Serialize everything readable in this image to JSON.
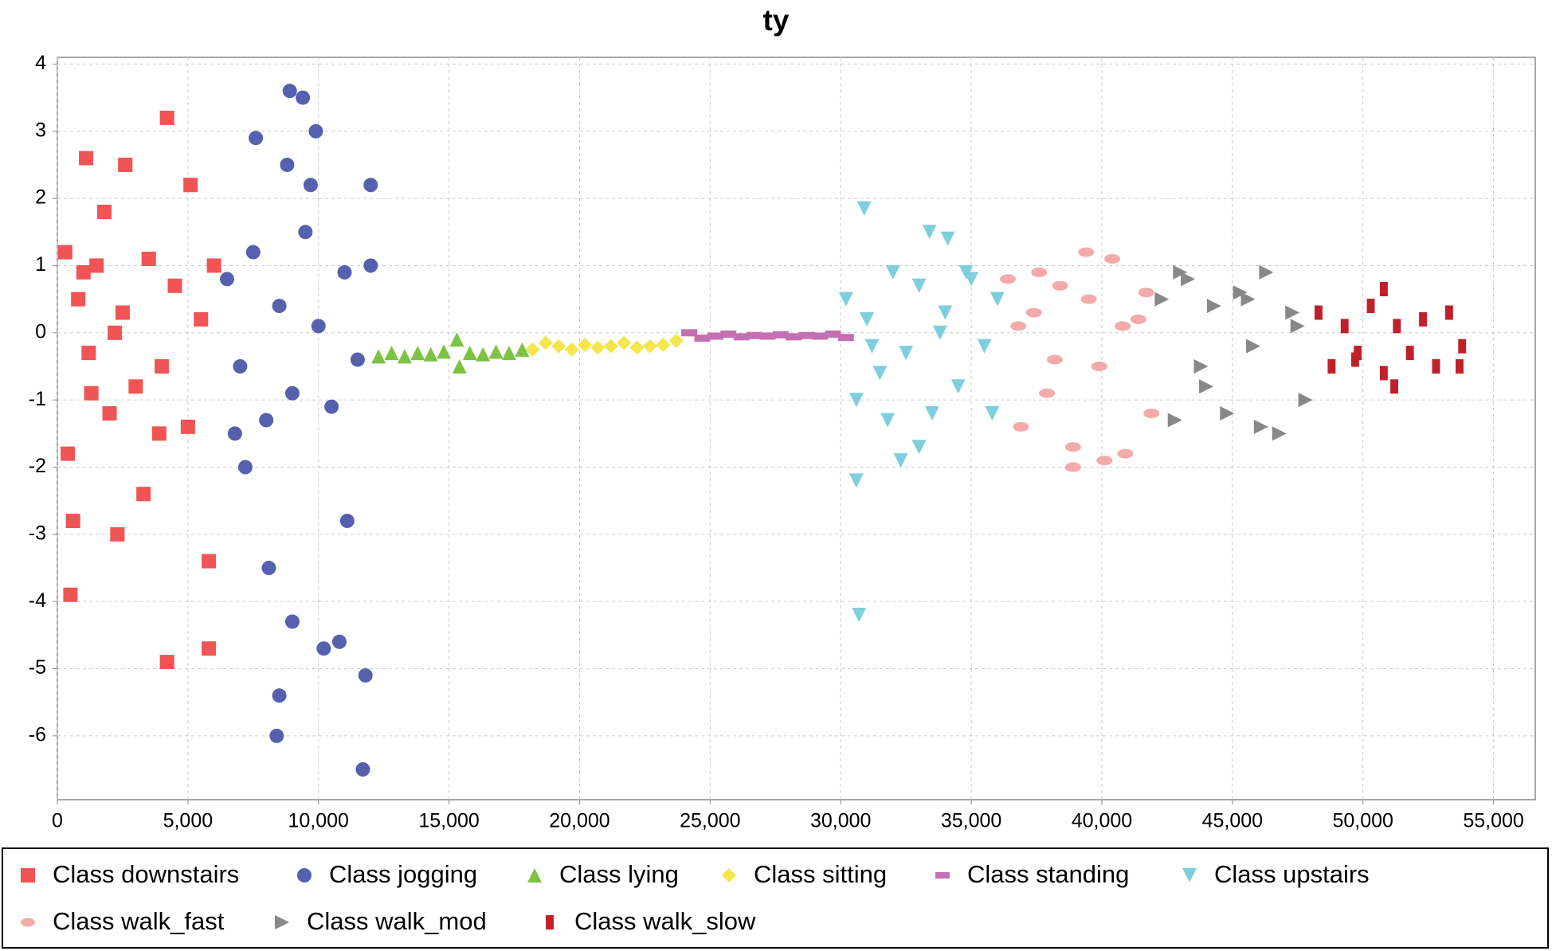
{
  "chart_data": {
    "type": "scatter",
    "title": "ty",
    "xlim": [
      0,
      56600
    ],
    "ylim": [
      -6.95,
      4.1
    ],
    "xticks": [
      0,
      {
        "value": 5000,
        "label": "5,000"
      },
      {
        "value": 10000,
        "label": "10,000"
      },
      {
        "value": 15000,
        "label": "15,000"
      },
      {
        "value": 20000,
        "label": "20,000"
      },
      {
        "value": 25000,
        "label": "25,000"
      },
      {
        "value": 30000,
        "label": "30,000"
      },
      {
        "value": 35000,
        "label": "35,000"
      },
      {
        "value": 40000,
        "label": "40,000"
      },
      {
        "value": 45000,
        "label": "45,000"
      },
      {
        "value": 50000,
        "label": "50,000"
      },
      {
        "value": 55000,
        "label": "55,000"
      }
    ],
    "yticks": [
      -6,
      -5,
      -4,
      -3,
      -2,
      -1,
      0,
      1,
      2,
      3,
      4
    ],
    "grid": true,
    "legend": "bottom",
    "series": [
      {
        "name": "Class downstairs",
        "color": "#f05455",
        "marker": "square",
        "x": [
          300,
          800,
          1200,
          1500,
          2000,
          2500,
          3000,
          3500,
          4000,
          4500,
          5000,
          5500,
          6000,
          400,
          1100,
          1800,
          2600,
          3300,
          4200,
          5100,
          5800,
          600,
          1300,
          2300,
          4200,
          500,
          5800,
          2200,
          3900,
          1000
        ],
        "values": [
          1.2,
          0.5,
          -0.3,
          1.0,
          -1.2,
          0.3,
          -0.8,
          1.1,
          -0.5,
          0.7,
          -1.4,
          0.2,
          1.0,
          -1.8,
          2.6,
          1.8,
          2.5,
          -2.4,
          3.2,
          2.2,
          -3.4,
          -2.8,
          -0.9,
          -3.0,
          -4.9,
          -3.9,
          -4.7,
          0.0,
          -1.5,
          0.9
        ]
      },
      {
        "name": "Class jogging",
        "color": "#5560ae",
        "marker": "circle",
        "x": [
          6500,
          7000,
          7500,
          8000,
          8500,
          9000,
          9500,
          10000,
          10500,
          11000,
          11500,
          12000,
          7600,
          8900,
          9400,
          9900,
          8400,
          8500,
          10200,
          11700,
          7200,
          8100,
          9000,
          10800,
          11800,
          6800,
          9700,
          11100,
          8800,
          12000
        ],
        "values": [
          0.8,
          -0.5,
          1.2,
          -1.3,
          0.4,
          -0.9,
          1.5,
          0.1,
          -1.1,
          0.9,
          -0.4,
          1.0,
          2.9,
          3.6,
          3.5,
          3.0,
          -6.0,
          -5.4,
          -4.7,
          -6.5,
          -2.0,
          -3.5,
          -4.3,
          -4.6,
          -5.1,
          -1.5,
          2.2,
          -2.8,
          2.5,
          2.2
        ]
      },
      {
        "name": "Class lying",
        "color": "#7dc242",
        "marker": "triangle-up",
        "x": [
          12300,
          12800,
          13300,
          13800,
          14300,
          14800,
          15300,
          15400,
          15800,
          16300,
          16800,
          17300,
          17800
        ],
        "values": [
          -0.35,
          -0.3,
          -0.35,
          -0.3,
          -0.32,
          -0.28,
          -0.1,
          -0.5,
          -0.3,
          -0.32,
          -0.28,
          -0.3,
          -0.25
        ]
      },
      {
        "name": "Class sitting",
        "color": "#f5e64c",
        "marker": "diamond",
        "x": [
          18200,
          18700,
          19200,
          19700,
          20200,
          20700,
          21200,
          21700,
          22200,
          22700,
          23200,
          23700
        ],
        "values": [
          -0.25,
          -0.15,
          -0.2,
          -0.25,
          -0.18,
          -0.22,
          -0.2,
          -0.15,
          -0.22,
          -0.2,
          -0.18,
          -0.12
        ]
      },
      {
        "name": "Class standing",
        "color": "#c56fb4",
        "marker": "hbar",
        "x": [
          24200,
          24700,
          25200,
          25700,
          26200,
          26700,
          27200,
          27700,
          28200,
          28700,
          29200,
          29700,
          30200
        ],
        "values": [
          0.0,
          -0.08,
          -0.05,
          -0.02,
          -0.06,
          -0.04,
          -0.05,
          -0.03,
          -0.06,
          -0.04,
          -0.05,
          -0.02,
          -0.07
        ]
      },
      {
        "name": "Class upstairs",
        "color": "#7ecfdd",
        "marker": "triangle-down",
        "x": [
          30200,
          30600,
          31000,
          31500,
          32000,
          32500,
          33000,
          33500,
          34000,
          34500,
          35000,
          35500,
          36000,
          30900,
          30700,
          30600,
          33400,
          34100,
          32300,
          35800,
          31200,
          33000,
          34800,
          31800,
          33800
        ],
        "values": [
          0.5,
          -1.0,
          0.2,
          -0.6,
          0.9,
          -0.3,
          0.7,
          -1.2,
          0.3,
          -0.8,
          0.8,
          -0.2,
          0.5,
          1.85,
          -4.2,
          -2.2,
          1.5,
          1.4,
          -1.9,
          -1.2,
          -0.2,
          -1.7,
          0.9,
          -1.3,
          0.0
        ]
      },
      {
        "name": "Class walk_fast",
        "color": "#f4aaab",
        "marker": "ellipse",
        "x": [
          36400,
          36900,
          37400,
          37900,
          38400,
          38900,
          39400,
          39900,
          40400,
          40900,
          41400,
          41900,
          38900,
          40100,
          39500,
          37600,
          40800,
          38200,
          36800,
          41700
        ],
        "values": [
          0.8,
          -1.4,
          0.3,
          -0.9,
          0.7,
          -1.7,
          1.2,
          -0.5,
          1.1,
          -1.8,
          0.2,
          -1.2,
          -2.0,
          -1.9,
          0.5,
          0.9,
          0.1,
          -0.4,
          0.1,
          0.6
        ]
      },
      {
        "name": "Class walk_mod",
        "color": "#888888",
        "marker": "triangle-right",
        "x": [
          42300,
          42800,
          43300,
          43800,
          44300,
          44800,
          45300,
          45800,
          46300,
          46800,
          47300,
          47800,
          43000,
          46100,
          44000,
          45600,
          47500
        ],
        "values": [
          0.5,
          -1.3,
          0.8,
          -0.5,
          0.4,
          -1.2,
          0.6,
          -0.2,
          0.9,
          -1.5,
          0.3,
          -1.0,
          0.9,
          -1.4,
          -0.8,
          0.5,
          0.1
        ]
      },
      {
        "name": "Class walk_slow",
        "color": "#c0202a",
        "marker": "vbar",
        "x": [
          48300,
          48800,
          49300,
          49800,
          50300,
          50800,
          51300,
          51800,
          52300,
          52800,
          53300,
          53800,
          50800,
          51200,
          49700,
          53700
        ],
        "values": [
          0.3,
          -0.5,
          0.1,
          -0.3,
          0.4,
          -0.6,
          0.1,
          -0.3,
          0.2,
          -0.5,
          0.3,
          -0.2,
          0.65,
          -0.8,
          -0.4,
          -0.5
        ]
      }
    ]
  }
}
